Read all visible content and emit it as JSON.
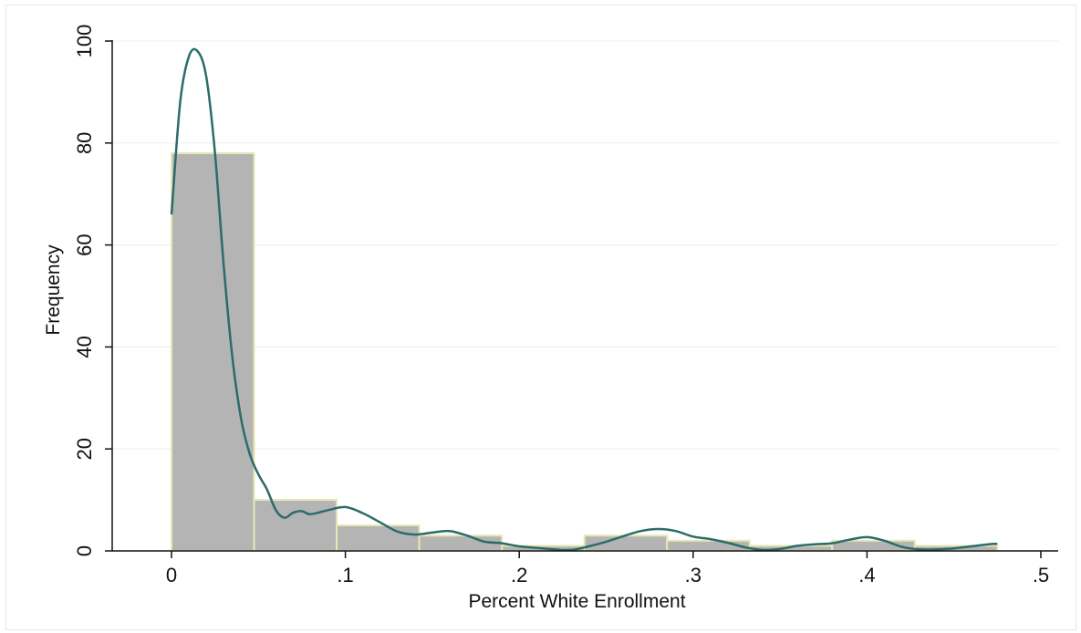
{
  "chart_data": {
    "type": "bar",
    "title": "",
    "xlabel": "Percent White Enrollment",
    "ylabel": "Frequency",
    "xlim": [
      -0.035,
      0.51
    ],
    "ylim": [
      0,
      102
    ],
    "xticks": [
      0,
      0.1,
      0.2,
      0.3,
      0.4,
      0.5
    ],
    "xtick_labels": [
      "0",
      ".1",
      ".2",
      ".3",
      ".4",
      ".5"
    ],
    "yticks": [
      0,
      20,
      40,
      60,
      80,
      100
    ],
    "ytick_labels": [
      "0",
      "20",
      "40",
      "60",
      "80",
      "100"
    ],
    "grid": true,
    "legend": "none",
    "bins": [
      {
        "x0": 0.0,
        "x1": 0.0475,
        "value": 78
      },
      {
        "x0": 0.0475,
        "x1": 0.095,
        "value": 10
      },
      {
        "x0": 0.095,
        "x1": 0.1425,
        "value": 5
      },
      {
        "x0": 0.1425,
        "x1": 0.19,
        "value": 3
      },
      {
        "x0": 0.19,
        "x1": 0.2375,
        "value": 1
      },
      {
        "x0": 0.2375,
        "x1": 0.285,
        "value": 3
      },
      {
        "x0": 0.285,
        "x1": 0.3325,
        "value": 2
      },
      {
        "x0": 0.3325,
        "x1": 0.38,
        "value": 1
      },
      {
        "x0": 0.38,
        "x1": 0.4275,
        "value": 2
      },
      {
        "x0": 0.4275,
        "x1": 0.475,
        "value": 1
      }
    ],
    "density_curve": {
      "x": [
        0,
        0.005,
        0.01,
        0.015,
        0.02,
        0.025,
        0.03,
        0.035,
        0.04,
        0.045,
        0.05,
        0.055,
        0.06,
        0.065,
        0.07,
        0.075,
        0.08,
        0.09,
        0.1,
        0.11,
        0.12,
        0.13,
        0.14,
        0.15,
        0.16,
        0.17,
        0.18,
        0.19,
        0.2,
        0.21,
        0.22,
        0.23,
        0.24,
        0.25,
        0.26,
        0.27,
        0.28,
        0.29,
        0.3,
        0.31,
        0.32,
        0.33,
        0.34,
        0.35,
        0.36,
        0.37,
        0.38,
        0.39,
        0.4,
        0.41,
        0.42,
        0.43,
        0.44,
        0.45,
        0.46,
        0.47,
        0.475
      ],
      "y": [
        66,
        88,
        97,
        98,
        93,
        78,
        56,
        38,
        26,
        19,
        15,
        12,
        8,
        6.5,
        7.5,
        7.8,
        7.2,
        8,
        8.6,
        7.4,
        5.6,
        3.8,
        3.2,
        3.6,
        3.9,
        3.0,
        1.8,
        1.5,
        0.9,
        0.6,
        0.3,
        0.2,
        0.9,
        1.8,
        2.9,
        3.9,
        4.3,
        3.9,
        2.8,
        2.3,
        1.6,
        0.7,
        0.2,
        0.4,
        1.0,
        1.3,
        1.5,
        2.2,
        2.7,
        2.0,
        0.8,
        0.3,
        0.3,
        0.5,
        0.9,
        1.3,
        1.4
      ]
    },
    "colors": {
      "bar_fill": "#b4b4b4",
      "bar_edge": "#e8e6b4",
      "curve": "#2b6c6a",
      "grid": "#e9efef",
      "axis": "#111111"
    }
  }
}
